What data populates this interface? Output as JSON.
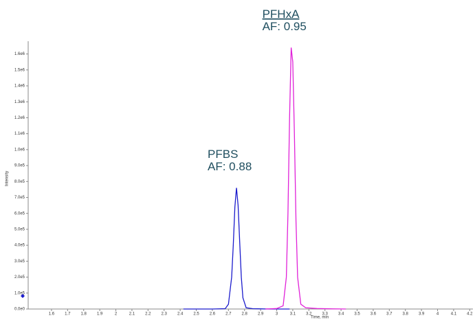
{
  "chart_data": {
    "type": "line",
    "x_label": "Time, min",
    "y_label": "Intensity",
    "xlim": [
      1.455,
      4.22
    ],
    "ylim": [
      0,
      1650000
    ],
    "xticks": [
      1.6,
      1.7,
      1.8,
      1.9,
      2.0,
      2.1,
      2.2,
      2.3,
      2.4,
      2.5,
      2.6,
      2.7,
      2.8,
      2.9,
      3.0,
      3.1,
      3.2,
      3.3,
      3.4,
      3.5,
      3.6,
      3.7,
      3.8,
      3.9,
      4.0,
      4.1,
      4.2
    ],
    "yticks": [
      {
        "value": 0,
        "label": "0.0e0"
      },
      {
        "value": 100000,
        "label": "1.0e5"
      },
      {
        "value": 200000,
        "label": "2.0e5"
      },
      {
        "value": 300000,
        "label": "3.0e5"
      },
      {
        "value": 400000,
        "label": "4.0e5"
      },
      {
        "value": 500000,
        "label": "5.0e5"
      },
      {
        "value": 600000,
        "label": "6.0e5"
      },
      {
        "value": 700000,
        "label": "7.0e5"
      },
      {
        "value": 800000,
        "label": "8.0e5"
      },
      {
        "value": 900000,
        "label": "9.0e5"
      },
      {
        "value": 1000000,
        "label": "1.0e6"
      },
      {
        "value": 1100000,
        "label": "1.1e6"
      },
      {
        "value": 1200000,
        "label": "1.2e6"
      },
      {
        "value": 1300000,
        "label": "1.3e6"
      },
      {
        "value": 1400000,
        "label": "1.4e6"
      },
      {
        "value": 1500000,
        "label": "1.5e6"
      },
      {
        "value": 1600000,
        "label": "1.6e6"
      }
    ],
    "series": [
      {
        "name": "PFBS",
        "label": "AF: 0.88",
        "color": "#1a1acc",
        "x": [
          2.42,
          2.6,
          2.68,
          2.7,
          2.72,
          2.73,
          2.74,
          2.75,
          2.76,
          2.77,
          2.78,
          2.79,
          2.81,
          2.85,
          2.95,
          3.08
        ],
        "values": [
          0,
          0,
          2000,
          30000,
          200000,
          400000,
          640000,
          760000,
          650000,
          420000,
          200000,
          70000,
          8000,
          2000,
          0,
          0
        ]
      },
      {
        "name": "PFHxA",
        "label": "AF: 0.95",
        "color": "#e020d8",
        "x": [
          2.93,
          3.0,
          3.04,
          3.06,
          3.07,
          3.08,
          3.09,
          3.1,
          3.11,
          3.12,
          3.13,
          3.15,
          3.18,
          3.25,
          3.35,
          3.43
        ],
        "values": [
          0,
          3000,
          20000,
          200000,
          600000,
          1200000,
          1640000,
          1550000,
          1100000,
          550000,
          200000,
          30000,
          8000,
          3000,
          1000,
          0
        ]
      }
    ]
  }
}
